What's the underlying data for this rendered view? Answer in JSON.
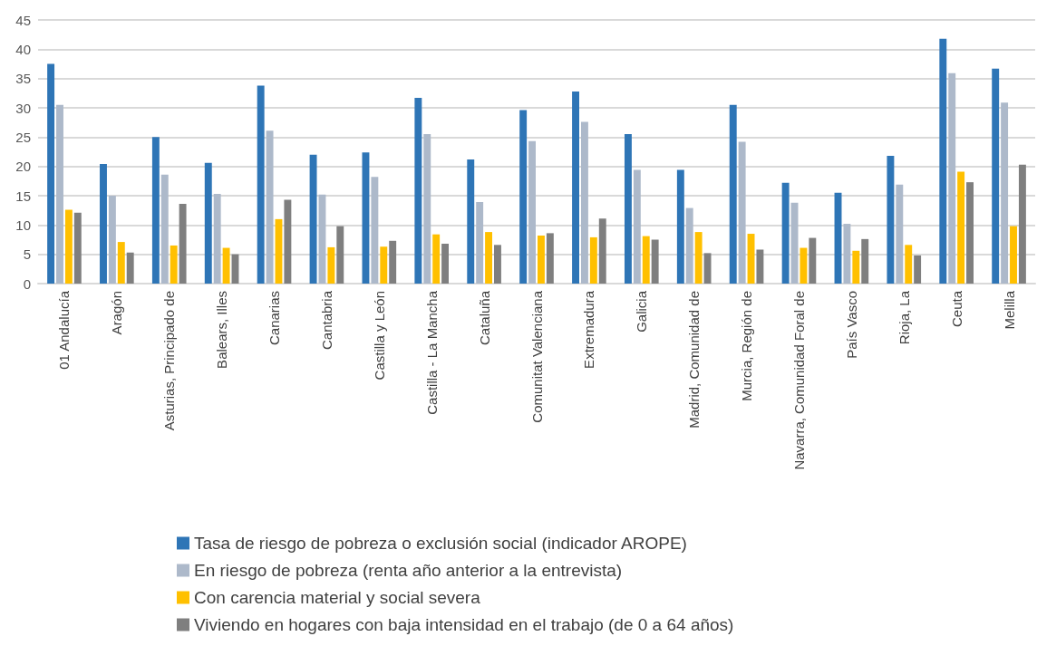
{
  "chart_data": {
    "type": "bar",
    "categories": [
      "01 Andalucía",
      "Aragón",
      "Asturias, Principado de",
      "Balears, Illes",
      "Canarias",
      "Cantabria",
      "Castilla y León",
      "Castilla - La Mancha",
      "Cataluña",
      "Comunitat Valenciana",
      "Extremadura",
      "Galicia",
      "Madrid, Comunidad de",
      "Murcia, Región de",
      "Navarra, Comunidad Foral de",
      "País Vasco",
      "Rioja, La",
      "Ceuta",
      "Melilla"
    ],
    "series": [
      {
        "name": "Tasa de riesgo de pobreza o exclusión social (indicador AROPE)",
        "color": "#2e75b6",
        "values": [
          37.5,
          20.4,
          25.0,
          20.6,
          33.8,
          22.0,
          22.4,
          31.7,
          21.2,
          29.6,
          32.8,
          25.5,
          19.4,
          30.5,
          17.2,
          15.5,
          21.8,
          41.8,
          36.7
        ]
      },
      {
        "name": "En riesgo de pobreza (renta año anterior a la entrevista)",
        "color": "#adb9ca",
        "values": [
          30.5,
          15.0,
          18.6,
          15.3,
          26.1,
          15.2,
          18.2,
          25.5,
          13.9,
          24.3,
          27.6,
          19.4,
          12.9,
          24.2,
          13.8,
          10.2,
          16.9,
          35.9,
          30.9
        ]
      },
      {
        "name": "Con carencia material y social severa",
        "color": "#ffc000",
        "values": [
          12.6,
          7.1,
          6.5,
          6.1,
          11.0,
          6.2,
          6.3,
          8.4,
          8.8,
          8.2,
          7.9,
          8.1,
          8.8,
          8.5,
          6.1,
          5.6,
          6.6,
          19.1,
          9.8
        ]
      },
      {
        "name": "Viviendo en hogares con baja intensidad en el trabajo (de 0 a 64 años)",
        "color": "#7f7f7f",
        "values": [
          12.1,
          5.3,
          13.6,
          5.0,
          14.3,
          9.8,
          7.3,
          6.8,
          6.6,
          8.6,
          11.1,
          7.5,
          5.2,
          5.8,
          7.8,
          7.6,
          4.8,
          17.3,
          20.3
        ]
      }
    ],
    "ylim": [
      0,
      45
    ],
    "yticks": [
      0,
      5,
      10,
      15,
      20,
      25,
      30,
      35,
      40,
      45
    ],
    "grid": "y",
    "legend": "bottom"
  }
}
